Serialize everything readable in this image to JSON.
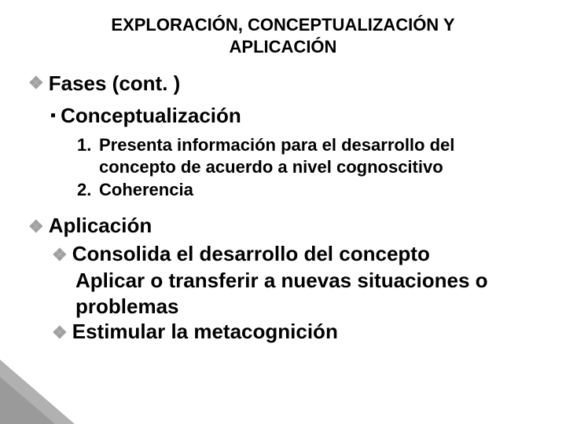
{
  "colors": {
    "text": "#000000",
    "bullet_gray": "#a0a0a0",
    "bullet_black": "#000000",
    "corner_light": "#b1b1b1",
    "corner_dark": "#9a9a9a",
    "background": "#ffffff"
  },
  "typography": {
    "family": "Arial",
    "title_size_pt": 17,
    "body_size_pt": 20,
    "numlist_size_pt": 17,
    "weight": 700
  },
  "title": "EXPLORACIÓN, CONCEPTUALIZACIÓN Y APLICACIÓN",
  "fases": {
    "heading": "Fases (cont. )",
    "conceptualizacion": {
      "heading": "Conceptualización",
      "items": [
        {
          "num": "1.",
          "text": "Presenta información para el desarrollo del concepto de acuerdo a nivel cognoscitivo"
        },
        {
          "num": "2.",
          "text": "Coherencia"
        }
      ]
    }
  },
  "aplicacion": {
    "heading": "Aplicación",
    "sub": [
      {
        "text": "Consolida el desarrollo del concepto"
      },
      {
        "text_a": "Aplicar o transferir a nuevas situaciones o",
        "text_b": " problemas"
      },
      {
        "text": "Estimular la metacognición"
      }
    ]
  }
}
